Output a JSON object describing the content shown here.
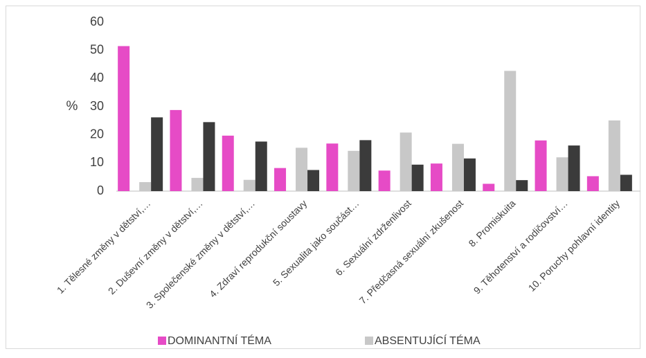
{
  "chart_data": {
    "type": "bar",
    "categories": [
      "1. Tělesné změny v dětství,…",
      "2. Duševní změny v dětství,…",
      "3. Společenské změny v dětství,…",
      "4. Zdraví reprodukční soustavy",
      "5. Sexualita jako součást…",
      "6. Sexuální zdrženlivost",
      "7. Předčasná sexuální zkušenost",
      "8. Promiskuita",
      "9. Těhotenství a rodičovství…",
      "10. Poruchy pohlavní identity"
    ],
    "series": [
      {
        "name": "DOMINANTNÍ TÉMA",
        "color": "#e64bc6",
        "values": [
          51.5,
          28.8,
          19.7,
          8.2,
          16.9,
          7.3,
          9.8,
          2.6,
          18.0,
          5.3
        ]
      },
      {
        "name": "ABSENTUJÍCÍ TÉMA",
        "color": "#c8c8c8",
        "values": [
          3.2,
          4.7,
          4.0,
          15.4,
          14.3,
          20.8,
          16.8,
          42.7,
          12.0,
          25.1
        ]
      },
      {
        "color": "#3b3b3b",
        "values": [
          26.2,
          24.5,
          17.6,
          7.5,
          18.1,
          9.4,
          11.6,
          3.9,
          16.2,
          5.8
        ]
      }
    ],
    "ylabel": "%",
    "ylim": [
      0,
      60
    ],
    "yticks": [
      0,
      10,
      20,
      30,
      40,
      50,
      60
    ],
    "grid": false
  }
}
